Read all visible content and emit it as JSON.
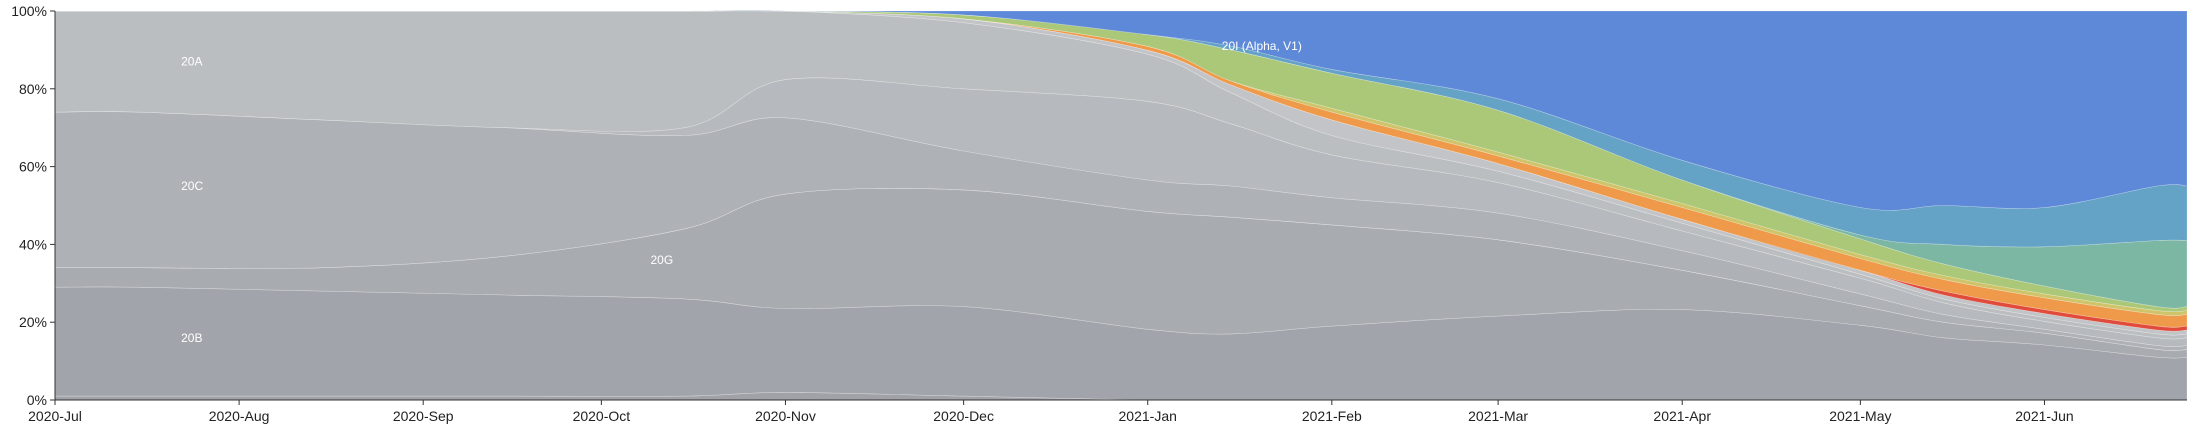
{
  "chart_data": {
    "type": "area",
    "stacked": true,
    "normalized": true,
    "x_ticks": [
      "2020-Jul",
      "2020-Aug",
      "2020-Sep",
      "2020-Oct",
      "2020-Nov",
      "2020-Dec",
      "2021-Jan",
      "2021-Feb",
      "2021-Mar",
      "2021-Apr",
      "2021-May",
      "2021-Jun"
    ],
    "y_ticks": [
      "0%",
      "20%",
      "40%",
      "60%",
      "80%",
      "100%"
    ],
    "ylim": [
      0,
      100
    ],
    "x": [
      "2020-07-15",
      "2020-08-15",
      "2020-09-15",
      "2020-10-15",
      "2020-11-01",
      "2020-12-01",
      "2021-01-01",
      "2021-01-15",
      "2021-02-01",
      "2021-03-01",
      "2021-04-01",
      "2021-05-01",
      "2021-05-15",
      "2021-06-01",
      "2021-06-20"
    ],
    "series": [
      {
        "name": "",
        "color": "#a0a2a8",
        "values": [
          1,
          1,
          1,
          1,
          2,
          1,
          0,
          0,
          0,
          0,
          0,
          0,
          0,
          0,
          0
        ]
      },
      {
        "name": "20B",
        "color": "#a1a4aa",
        "values": [
          28,
          27,
          26,
          25,
          22,
          23,
          18,
          17,
          19,
          22,
          23,
          19,
          16,
          14,
          11
        ]
      },
      {
        "name": "",
        "color": "#a8abb0",
        "values": [
          5,
          6,
          10,
          18,
          30,
          30,
          30,
          30,
          26,
          20,
          10,
          5,
          4,
          3,
          2
        ]
      },
      {
        "name": "20G",
        "color": "#a6a9ae",
        "values": [
          0,
          0,
          0,
          0,
          0,
          0,
          0,
          0,
          0,
          0,
          0,
          0,
          0,
          0,
          0
        ]
      },
      {
        "name": "20C",
        "color": "#aeb1b5",
        "values": [
          40,
          38,
          33,
          24,
          20,
          10,
          8,
          8,
          7,
          7,
          5,
          3,
          2,
          1,
          1
        ]
      },
      {
        "name": "",
        "color": "#b6b9bd",
        "values": [
          0,
          0,
          0,
          2,
          10,
          16,
          20,
          16,
          11,
          8,
          5,
          4,
          3,
          2,
          2
        ]
      },
      {
        "name": "20A",
        "color": "#bbbec1",
        "values": [
          26,
          28,
          30,
          30,
          18,
          17,
          12,
          8,
          5,
          3,
          2,
          1,
          1,
          1,
          1
        ]
      },
      {
        "name": "",
        "color": "#c2c4c7",
        "values": [
          0,
          0,
          0,
          0,
          0,
          1,
          1,
          2,
          4,
          2,
          1,
          1,
          1,
          1,
          1
        ]
      },
      {
        "name": "",
        "color": "#e04b3c",
        "values": [
          0,
          0,
          0,
          0,
          0,
          0,
          0,
          0,
          0,
          0,
          0,
          0,
          1,
          1,
          1
        ]
      },
      {
        "name": "",
        "color": "#ee9a4a",
        "values": [
          0,
          0,
          0,
          0,
          0,
          0,
          1,
          1,
          2,
          2,
          3,
          3,
          3,
          3,
          3
        ]
      },
      {
        "name": "",
        "color": "#cfc46a",
        "values": [
          0,
          0,
          0,
          0,
          0,
          0,
          0,
          0,
          1,
          1,
          1,
          1,
          1,
          1,
          1
        ]
      },
      {
        "name": "",
        "color": "#abc878",
        "values": [
          0,
          0,
          0,
          0,
          0,
          1,
          3,
          8,
          9,
          11,
          6,
          4,
          3,
          2,
          1
        ]
      },
      {
        "name": "",
        "color": "#7cb7a4",
        "values": [
          0,
          0,
          0,
          0,
          0,
          0,
          0,
          0,
          0,
          0,
          0,
          1,
          5,
          10,
          17
        ]
      },
      {
        "name": "",
        "color": "#64a2c6",
        "values": [
          0,
          0,
          0,
          0,
          0,
          0,
          0,
          1,
          1,
          3,
          5,
          7,
          10,
          10,
          14
        ]
      },
      {
        "name": "20I (Alpha, V1)",
        "color": "#5e89d8",
        "values": [
          0,
          0,
          0,
          0,
          0,
          1,
          6,
          9,
          15,
          23,
          38,
          50,
          50,
          50,
          45
        ]
      }
    ],
    "labels": [
      {
        "text": "20A",
        "series": "20A"
      },
      {
        "text": "20C",
        "series": "20C"
      },
      {
        "text": "20G",
        "series": "20G"
      },
      {
        "text": "20B",
        "series": "20B"
      },
      {
        "text": "20I (Alpha, V1)",
        "series": "20I (Alpha, V1)"
      }
    ],
    "grid": false,
    "legend": "none"
  }
}
